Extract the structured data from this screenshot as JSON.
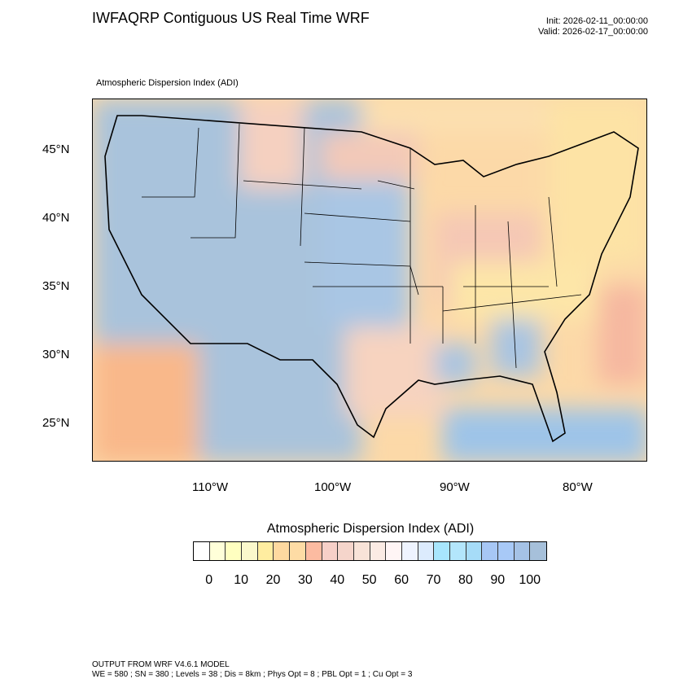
{
  "header": {
    "title": "IWFAQRP Contiguous US Real Time WRF",
    "init": "Init: 2026-02-11_00:00:00",
    "valid": "Valid: 2026-02-17_00:00:00"
  },
  "map": {
    "subtitle": "Atmospheric Dispersion Index   (ADI)",
    "lat_labels": [
      "45°N",
      "40°N",
      "35°N",
      "30°N",
      "25°N"
    ],
    "lon_labels": [
      "110°W",
      "100°W",
      "90°W",
      "80°W"
    ]
  },
  "colorbar": {
    "title": "Atmospheric Dispersion Index  (ADI)",
    "labels": [
      "0",
      "10",
      "20",
      "30",
      "40",
      "50",
      "60",
      "70",
      "80",
      "90",
      "100"
    ],
    "colors": [
      "#ffffff",
      "#ffffd9",
      "#ffffc0",
      "#fbf8cc",
      "#ffeda0",
      "#fed9a0",
      "#fedca5",
      "#fcbba1",
      "#f7d0c8",
      "#f5d5cb",
      "#f8e3d8",
      "#fbebe4",
      "#fff5f5",
      "#eef4ff",
      "#dcebfd",
      "#a8e6fd",
      "#b3e6fc",
      "#a6dcf8",
      "#a7c7f5",
      "#a8c9f7",
      "#a5c2e6",
      "#a6c0da"
    ]
  },
  "footer": {
    "line1": "OUTPUT FROM WRF V4.6.1 MODEL",
    "line2": "WE = 580 ; SN = 380 ; Levels = 38 ; Dis = 8km ; Phys Opt = 8 ; PBL Opt = 1 ; Cu Opt = 3"
  }
}
